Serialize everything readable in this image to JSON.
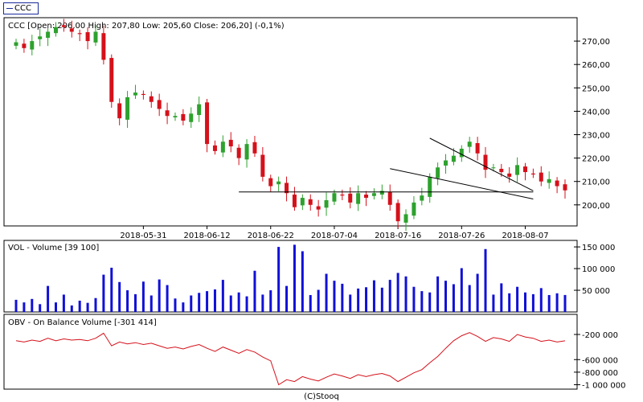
{
  "legend": {
    "label": "CCC"
  },
  "footer": {
    "credit": "(C)Stooq"
  },
  "colors": {
    "up": "#2ea12e",
    "down": "#d4111b",
    "volume": "#1010d8",
    "obv": "#d4111b",
    "trend": "#000000",
    "frame": "#000000"
  },
  "chart_data": [
    {
      "type": "candlestick",
      "title": "CCC [Open: 206,00  High: 207,80  Low: 205,60  Close: 206,20] (-0,1%)",
      "x_tick_labels": [
        "2018-05-31",
        "2018-06-12",
        "2018-06-22",
        "2018-07-04",
        "2018-07-16",
        "2018-07-26",
        "2018-08-07"
      ],
      "x_tick_index": [
        16,
        24,
        32,
        40,
        48,
        56,
        64
      ],
      "y_ticks": [
        200,
        210,
        220,
        230,
        240,
        250,
        260,
        270
      ],
      "y_tick_labels": [
        "200,00",
        "210,00",
        "220,00",
        "230,00",
        "240,00",
        "250,00",
        "260,00",
        "270,00"
      ],
      "ylim": [
        191,
        280
      ],
      "grid": false,
      "closes": [
        269.5,
        267,
        270,
        272,
        274,
        276,
        276,
        274,
        273,
        270,
        274,
        262,
        244,
        237,
        246,
        248,
        247,
        244,
        241,
        238,
        238,
        236,
        239,
        243,
        226,
        223,
        227,
        225,
        220,
        226,
        222,
        212,
        208,
        210,
        205,
        199,
        203,
        200,
        198,
        202,
        205,
        204,
        201,
        205,
        203,
        205,
        206,
        200,
        193,
        196,
        201,
        204,
        212,
        216,
        219,
        221,
        224,
        227,
        222,
        215,
        216,
        214,
        212,
        217,
        214,
        213,
        210,
        211,
        208,
        206.2
      ],
      "wedge": {
        "upper": [
          [
            52,
            228.5
          ],
          [
            65,
            206
          ]
        ],
        "lower": [
          [
            47,
            215.5
          ],
          [
            65,
            202.5
          ]
        ]
      },
      "support": {
        "level": 205.5,
        "from": 28,
        "to": 65
      }
    },
    {
      "type": "bar",
      "title": "VOL - Volume [39 100]",
      "y_ticks": [
        50000,
        100000,
        150000
      ],
      "y_tick_labels": [
        "50 000",
        "100 000",
        "150 000"
      ],
      "ylim": [
        0,
        165000
      ],
      "values": [
        28000,
        22000,
        30000,
        18000,
        60000,
        22000,
        40000,
        15000,
        26000,
        21000,
        32000,
        86000,
        102000,
        69000,
        50000,
        41000,
        70000,
        38000,
        75000,
        62000,
        31000,
        22000,
        38000,
        44000,
        48000,
        52000,
        74000,
        38000,
        45000,
        36000,
        95000,
        40000,
        50000,
        150000,
        60000,
        155000,
        140000,
        39000,
        51000,
        88000,
        72000,
        65000,
        40000,
        54000,
        57000,
        73000,
        56000,
        74000,
        90000,
        82000,
        58000,
        48000,
        45000,
        82000,
        72000,
        64000,
        101000,
        62000,
        88000,
        145000,
        40000,
        66000,
        43000,
        58000,
        45000,
        41000,
        55000,
        39000,
        43000,
        39100
      ]
    },
    {
      "type": "line",
      "title": "OBV - On Balance Volume [-301 414]",
      "y_ticks": [
        -200000,
        -600000,
        -800000,
        -1000000
      ],
      "y_tick_labels": [
        "-200 000",
        "-600 000",
        "-800 000",
        "-1 000 000"
      ],
      "ylim": [
        -1070000,
        120000
      ],
      "values": [
        -300000,
        -320000,
        -290000,
        -310000,
        -260000,
        -300000,
        -270000,
        -290000,
        -280000,
        -300000,
        -260000,
        -180000,
        -380000,
        -320000,
        -350000,
        -330000,
        -360000,
        -340000,
        -380000,
        -420000,
        -400000,
        -430000,
        -390000,
        -360000,
        -420000,
        -470000,
        -400000,
        -450000,
        -500000,
        -440000,
        -480000,
        -560000,
        -620000,
        -1000000,
        -920000,
        -950000,
        -870000,
        -910000,
        -940000,
        -880000,
        -830000,
        -860000,
        -900000,
        -840000,
        -870000,
        -840000,
        -820000,
        -860000,
        -950000,
        -880000,
        -810000,
        -760000,
        -650000,
        -550000,
        -420000,
        -300000,
        -220000,
        -170000,
        -230000,
        -310000,
        -250000,
        -270000,
        -310000,
        -200000,
        -240000,
        -260000,
        -310000,
        -290000,
        -320000,
        -301414
      ]
    }
  ]
}
